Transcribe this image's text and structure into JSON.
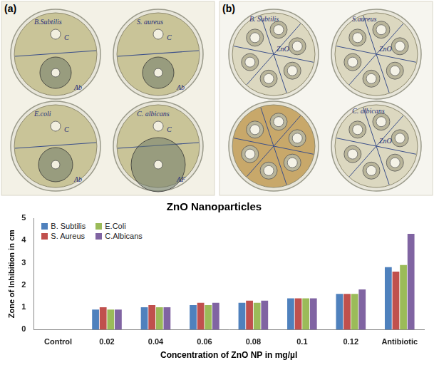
{
  "chart_data": {
    "type": "bar",
    "title": "ZnO Nanoparticles",
    "x_label": "Concentration of ZnO NP in mg/µl",
    "y_label": "Zone of Inhibition in cm",
    "categories": [
      "Control",
      "0.02",
      "0.04",
      "0.06",
      "0.08",
      "0.1",
      "0.12",
      "Antibiotic"
    ],
    "series": [
      {
        "name": "B. Subtilis",
        "color": "#4f81bd",
        "values": [
          0,
          0.9,
          1.0,
          1.1,
          1.2,
          1.4,
          1.6,
          2.8
        ]
      },
      {
        "name": "S. Aureus",
        "color": "#c0504d",
        "values": [
          0,
          1.0,
          1.1,
          1.2,
          1.3,
          1.4,
          1.6,
          2.6
        ]
      },
      {
        "name": "E.Coli",
        "color": "#9bbb59",
        "values": [
          0,
          0.9,
          1.0,
          1.1,
          1.2,
          1.4,
          1.6,
          2.9
        ]
      },
      {
        "name": "C.Albicans",
        "color": "#8064a2",
        "values": [
          0,
          0.9,
          1.0,
          1.2,
          1.3,
          1.4,
          1.8,
          4.3
        ]
      }
    ],
    "ylim": [
      0,
      5
    ],
    "yticks": [
      0,
      1,
      2,
      3,
      4,
      5
    ],
    "grid": false,
    "legend": "upper left"
  },
  "panels": [
    {
      "label": "(a)",
      "plates": [
        {
          "texts": [
            "B.Subtilis",
            "C",
            "Ab"
          ]
        },
        {
          "texts": [
            "S. aureus",
            "C",
            "Ab"
          ]
        },
        {
          "texts": [
            "E.coli",
            "C",
            "Ab"
          ]
        },
        {
          "texts": [
            "C. albicans",
            "C",
            "AF"
          ]
        }
      ]
    },
    {
      "label": "(b)",
      "plates": [
        {
          "texts": [
            "B. Subtilis",
            "ZnO"
          ]
        },
        {
          "texts": [
            "S.aureus",
            "ZnO"
          ]
        },
        {
          "texts": []
        },
        {
          "texts": [
            "C. albicans",
            "ZnO"
          ]
        }
      ]
    }
  ]
}
